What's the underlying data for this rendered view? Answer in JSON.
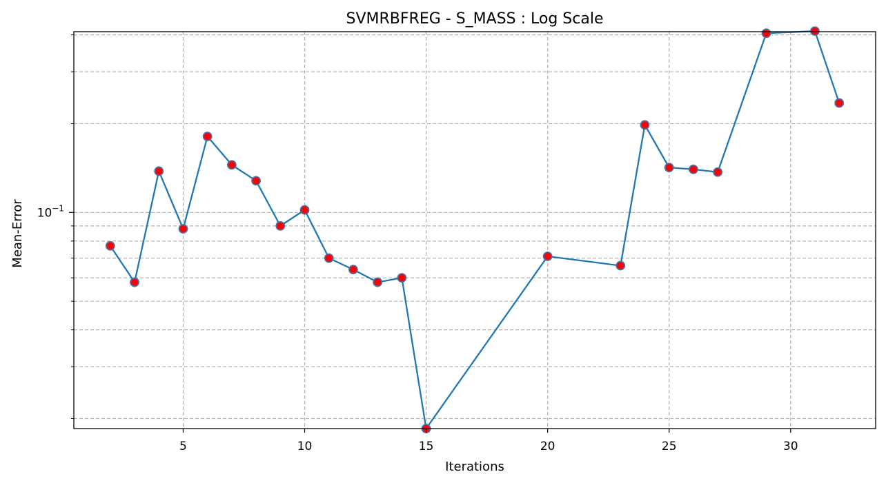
{
  "chart_data": {
    "type": "line",
    "title": "SVMRBFREG - S_MASS : Log Scale",
    "xlabel": "Iterations",
    "ylabel": "Mean-Error",
    "xlim": [
      0.5,
      33.5
    ],
    "ylim": [
      0.0185,
      0.41
    ],
    "yscale": "log",
    "grid": true,
    "x_ticks": [
      5,
      10,
      15,
      20,
      25,
      30
    ],
    "x_tick_labels": [
      "5",
      "10",
      "15",
      "20",
      "25",
      "30"
    ],
    "y_major_ticks": [
      0.1
    ],
    "y_major_tick_labels": [
      "10^-1"
    ],
    "y_minor_ticks": [
      0.02,
      0.03,
      0.04,
      0.05,
      0.06,
      0.07,
      0.08,
      0.09,
      0.2,
      0.3,
      0.4
    ],
    "series": [
      {
        "x": [
          2,
          3,
          4,
          5,
          6,
          7,
          8,
          9,
          10,
          11,
          12,
          13,
          14,
          15,
          20,
          23,
          24,
          25,
          26,
          27,
          29,
          31,
          32
        ],
        "y": [
          0.077,
          0.058,
          0.138,
          0.088,
          0.181,
          0.145,
          0.128,
          0.09,
          0.102,
          0.07,
          0.064,
          0.058,
          0.06,
          0.0185,
          0.071,
          0.066,
          0.198,
          0.142,
          0.14,
          0.137,
          0.405,
          0.412,
          0.235
        ],
        "line_color": "#1f77b4",
        "marker_face_color": "#ff0000",
        "marker_edge_color": "#4a6fa5"
      }
    ]
  }
}
